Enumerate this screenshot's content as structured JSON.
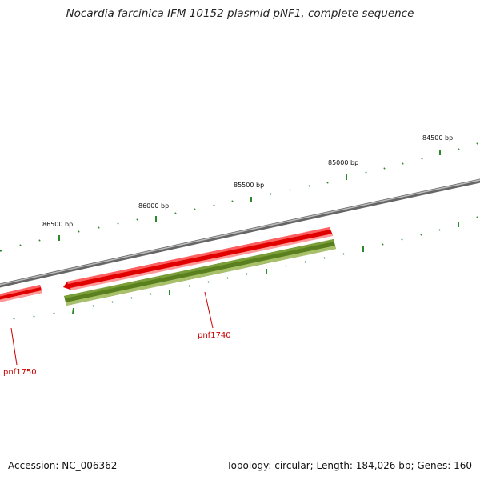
{
  "title": "Nocardia farcinica IFM 10152 plasmid pNF1, complete sequence",
  "footer": {
    "accession": "Accession: NC_006362",
    "summary": "Topology: circular; Length: 184,026 bp; Genes: 160"
  },
  "position_labels": [
    "86500 bp",
    "86000 bp",
    "85500 bp",
    "85000 bp",
    "84500 bp"
  ],
  "genes": [
    {
      "name": "pnf1740",
      "strand": "reverse",
      "color": "#ee0000",
      "icon": "arrow-left"
    },
    {
      "name": "pnf1750",
      "strand": "reverse",
      "color": "#ee0000",
      "icon": "bar"
    }
  ],
  "features": [
    {
      "name": "orf-track-feature",
      "color": "#5a7f1e"
    }
  ],
  "colors": {
    "backbone": "#888888",
    "tick": "#2b8a2b",
    "gene": "#ee0000",
    "gene_highlight": "#ff8080",
    "orf": "#5a7f1e",
    "orf_highlight": "#9ab55a",
    "label_line": "#cc0000"
  }
}
